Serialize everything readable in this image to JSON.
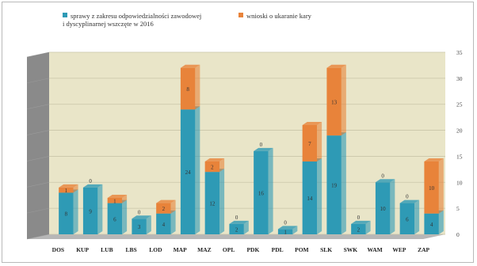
{
  "legend": {
    "series1_line1": "sprawy z zakresu odpowiedzialności zawodowej",
    "series1_line2": "i dyscyplinarnej wszczęte w 2016",
    "series2": "wnioski o ukaranie kary"
  },
  "colors": {
    "series1": "#2e9ab5",
    "series2": "#e8833a",
    "wall": "#e9e5c8",
    "floor": "#b7b7b7",
    "side": "#8a8a8a"
  },
  "chart_data": {
    "type": "bar",
    "stacked": true,
    "categories": [
      "DOS",
      "KUP",
      "LUB",
      "LBS",
      "LOD",
      "MAP",
      "MAZ",
      "OPL",
      "PDK",
      "PDL",
      "POM",
      "SLK",
      "SWK",
      "WAM",
      "WEP",
      "ZAP"
    ],
    "series": [
      {
        "name": "sprawy z zakresu odpowiedzialności zawodowej i dyscyplinarnej wszczęte w 2016",
        "values": [
          8,
          9,
          6,
          3,
          4,
          24,
          12,
          2,
          16,
          1,
          14,
          19,
          2,
          10,
          6,
          4
        ]
      },
      {
        "name": "wnioski o ukaranie kary",
        "values": [
          1,
          0,
          1,
          0,
          2,
          8,
          2,
          0,
          0,
          0,
          7,
          13,
          0,
          0,
          0,
          10
        ]
      }
    ],
    "data_labels_top": [
      "1",
      "0",
      "1",
      "0",
      "2",
      "8",
      "2",
      "0",
      "0",
      "0",
      "7",
      "13",
      "0",
      "0",
      "0",
      "10"
    ],
    "data_labels_base": [
      "8",
      "9",
      "6",
      "3",
      "4",
      "24",
      "12",
      "2",
      "16",
      "1",
      "14",
      "19",
      "2",
      "10",
      "6",
      "4"
    ],
    "ylim": [
      0,
      35
    ],
    "yticks": [
      0,
      5,
      10,
      15,
      20,
      25,
      30,
      35
    ],
    "grid": true,
    "legend_position": "top"
  }
}
